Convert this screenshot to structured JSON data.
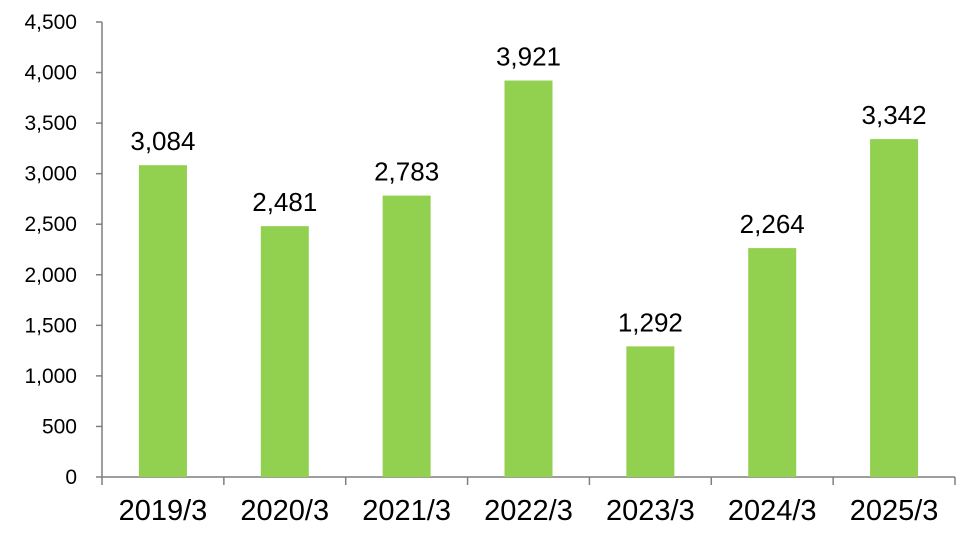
{
  "chart_data": {
    "type": "bar",
    "title": "",
    "xlabel": "",
    "ylabel": "",
    "categories": [
      "2019/3",
      "2020/3",
      "2021/3",
      "2022/3",
      "2023/3",
      "2024/3",
      "2025/3"
    ],
    "values": [
      3084,
      2481,
      2783,
      3921,
      1292,
      2264,
      3342
    ],
    "value_labels": [
      "3,084",
      "2,481",
      "2,783",
      "3,921",
      "1,292",
      "2,264",
      "3,342"
    ],
    "ylim": [
      0,
      4500
    ],
    "yticks": [
      0,
      500,
      1000,
      1500,
      2000,
      2500,
      3000,
      3500,
      4000,
      4500
    ],
    "ytick_labels": [
      "0",
      "500",
      "1,000",
      "1,500",
      "2,000",
      "2,500",
      "3,000",
      "3,500",
      "4,000",
      "4,500"
    ],
    "grid": false,
    "legend": "none",
    "bar_color": "#92D050",
    "axis_color": "#7F7F7F"
  }
}
